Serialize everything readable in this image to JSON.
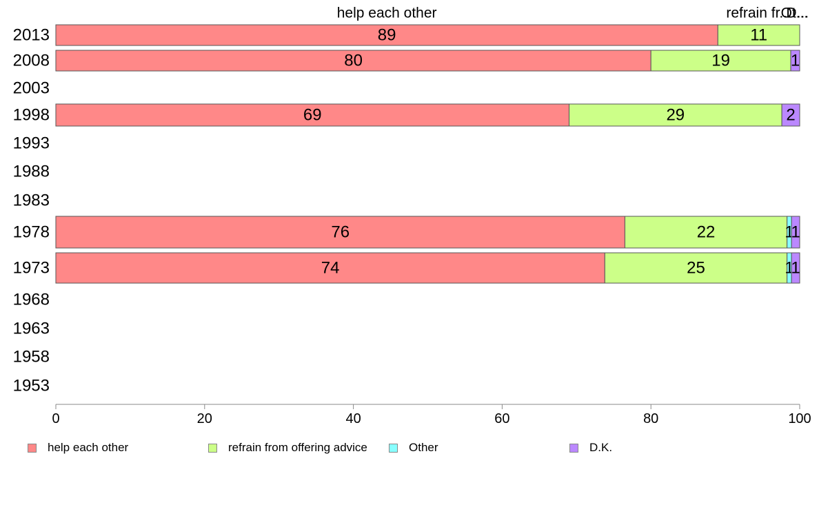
{
  "chart_data": {
    "type": "bar",
    "orientation": "horizontal",
    "stacked": true,
    "categories": [
      "2013",
      "2008",
      "2003",
      "1998",
      "1993",
      "1988",
      "1983",
      "1978",
      "1973",
      "1968",
      "1963",
      "1958",
      "1953"
    ],
    "series": [
      {
        "name": "help each other",
        "color": "#ff8888",
        "values": [
          89,
          80,
          null,
          69,
          null,
          null,
          null,
          76.5,
          73.8,
          null,
          null,
          null,
          null
        ],
        "labels": [
          "89",
          "80",
          "",
          "69",
          "",
          "",
          "",
          "76",
          "74",
          "",
          "",
          "",
          ""
        ]
      },
      {
        "name": "refrain from offering advice",
        "color": "#ccff88",
        "values": [
          11,
          18.8,
          null,
          28.6,
          null,
          null,
          null,
          21.8,
          24.5,
          null,
          null,
          null,
          null
        ],
        "labels": [
          "11",
          "19",
          "",
          "29",
          "",
          "",
          "",
          "22",
          "25",
          "",
          "",
          "",
          ""
        ]
      },
      {
        "name": "Other",
        "color": "#88ffff",
        "values": [
          0,
          0,
          null,
          0,
          null,
          null,
          null,
          0.6,
          0.6,
          null,
          null,
          null,
          null
        ],
        "labels": [
          "",
          "",
          "",
          "",
          "",
          "",
          "",
          "1",
          "1",
          "",
          "",
          "",
          ""
        ]
      },
      {
        "name": "D.K.",
        "color": "#bb88ff",
        "values": [
          0,
          1.2,
          null,
          2.4,
          null,
          null,
          null,
          1.1,
          1.1,
          null,
          null,
          null,
          null
        ],
        "labels": [
          "",
          "1",
          "",
          "2",
          "",
          "",
          "",
          "1",
          "1",
          "",
          "",
          "",
          ""
        ]
      }
    ],
    "top_labels": [
      {
        "text": "help each other",
        "x": 44.5
      },
      {
        "text": "refrain fr...",
        "x": 94.5
      },
      {
        "text": "Ot...",
        "x": 99.3
      },
      {
        "text": "D...",
        "x": 99.7
      }
    ],
    "xlim": [
      0,
      100
    ],
    "xticks": [
      0,
      20,
      40,
      60,
      80,
      100
    ],
    "legend_position": "bottom",
    "grid": false
  },
  "colors": {
    "bar_stroke": "#555555",
    "axis": "#888888"
  }
}
